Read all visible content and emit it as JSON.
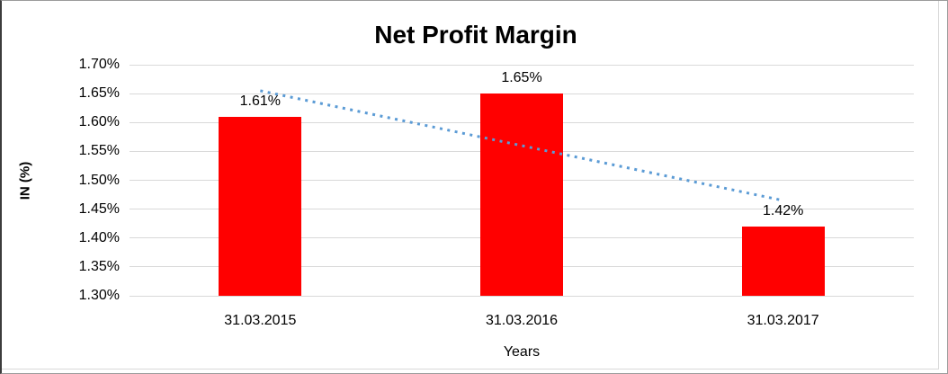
{
  "chart_data": {
    "type": "bar",
    "title": "Net Profit Margin",
    "categories": [
      "31.03.2015",
      "31.03.2016",
      "31.03.2017"
    ],
    "values": [
      1.61,
      1.65,
      1.42
    ],
    "data_labels": [
      "1.61%",
      "1.65%",
      "1.42%"
    ],
    "xlabel": "Years",
    "ylabel": "IN (%)",
    "ylim": [
      1.3,
      1.7
    ],
    "ytick_step": 0.05,
    "ytick_labels": [
      "1.30%",
      "1.35%",
      "1.40%",
      "1.45%",
      "1.50%",
      "1.55%",
      "1.60%",
      "1.65%",
      "1.70%"
    ],
    "grid": true,
    "legend": "none",
    "trendline": "linear-dotted",
    "colors": {
      "bar": "#ff0000",
      "trendline": "#5b9bd5",
      "gridline": "#d9d9d9",
      "text": "#000000",
      "background": "#ffffff"
    }
  }
}
